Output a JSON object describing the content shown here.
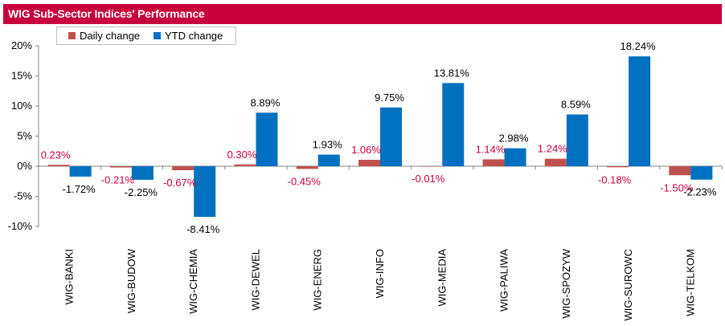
{
  "title": "WIG Sub-Sector Indices' Performance",
  "colors": {
    "title_bg": "#c8003c",
    "daily": "#c0504d",
    "ytd": "#0070c0",
    "daily_label": "#c8003c",
    "ytd_label": "#000000"
  },
  "legend": {
    "daily": "Daily change",
    "ytd": "YTD change"
  },
  "chart_data": {
    "type": "bar",
    "title": "WIG Sub-Sector Indices' Performance",
    "categories": [
      "WIG-BANKI",
      "WIG-BUDOW",
      "WIG-CHEMIA",
      "WIG-DEWEL",
      "WIG-ENERG",
      "WIG-INFO",
      "WIG-MEDIA",
      "WIG-PALIWA",
      "WIG-SPOZYW",
      "WIG-SUROWC",
      "WIG-TELKOM"
    ],
    "series": [
      {
        "name": "Daily change",
        "values": [
          0.23,
          -0.21,
          -0.67,
          0.3,
          -0.45,
          1.06,
          -0.01,
          1.14,
          1.24,
          -0.18,
          -1.5
        ],
        "labels": [
          "0.23%",
          "-0.21%",
          "-0.67%",
          "0.30%",
          "-0.45%",
          "1.06%",
          "-0.01%",
          "1.14%",
          "1.24%",
          "-0.18%",
          "-1.50%"
        ]
      },
      {
        "name": "YTD change",
        "values": [
          -1.72,
          -2.25,
          -8.41,
          8.89,
          1.93,
          9.75,
          13.81,
          2.98,
          8.59,
          18.24,
          -2.23
        ],
        "labels": [
          "-1.72%",
          "-2.25%",
          "-8.41%",
          "8.89%",
          "1.93%",
          "9.75%",
          "13.81%",
          "2.98%",
          "8.59%",
          "18.24%",
          "-2.23%"
        ]
      }
    ],
    "yticks": [
      "20%",
      "15%",
      "10%",
      "5%",
      "0%",
      "-5%",
      "-10%"
    ],
    "ytick_values": [
      20,
      15,
      10,
      5,
      0,
      -5,
      -10
    ],
    "ylim": [
      -10,
      20
    ],
    "grid": false,
    "legend_position": "top-left"
  }
}
